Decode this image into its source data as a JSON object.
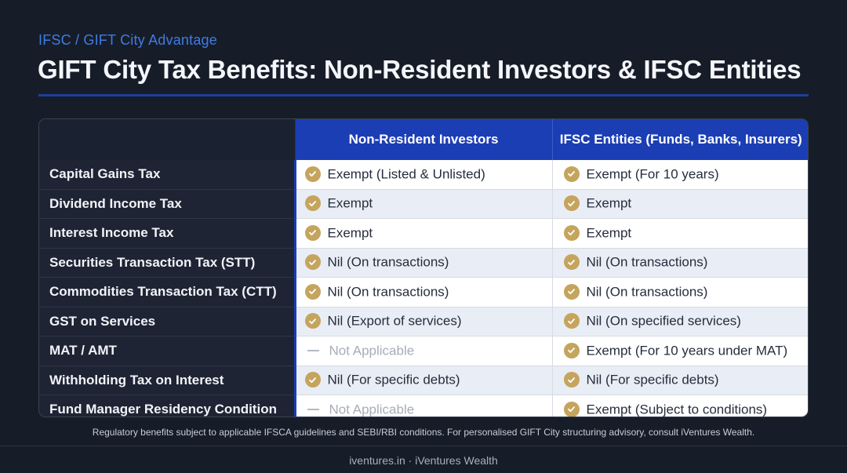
{
  "eyebrow": "IFSC / GIFT City Advantage",
  "title": "GIFT City Tax Benefits: Non-Resident Investors & IFSC Entities",
  "colors": {
    "accent_blue": "#1b3eb5",
    "check_gold": "#c5a45d",
    "background": "#171d28"
  },
  "table": {
    "columns": [
      "Non-Resident Investors",
      "IFSC Entities (Funds, Banks, Insurers)"
    ],
    "rows": [
      {
        "label": "Capital Gains Tax",
        "nri": {
          "status": "check",
          "text": "Exempt (Listed & Unlisted)"
        },
        "ifsc": {
          "status": "check",
          "text": "Exempt (For 10 years)"
        }
      },
      {
        "label": "Dividend Income Tax",
        "nri": {
          "status": "check",
          "text": "Exempt"
        },
        "ifsc": {
          "status": "check",
          "text": "Exempt"
        }
      },
      {
        "label": "Interest Income Tax",
        "nri": {
          "status": "check",
          "text": "Exempt"
        },
        "ifsc": {
          "status": "check",
          "text": "Exempt"
        }
      },
      {
        "label": "Securities Transaction Tax (STT)",
        "nri": {
          "status": "check",
          "text": "Nil (On transactions)"
        },
        "ifsc": {
          "status": "check",
          "text": "Nil (On transactions)"
        }
      },
      {
        "label": "Commodities Transaction Tax (CTT)",
        "nri": {
          "status": "check",
          "text": "Nil (On transactions)"
        },
        "ifsc": {
          "status": "check",
          "text": "Nil (On transactions)"
        }
      },
      {
        "label": "GST on Services",
        "nri": {
          "status": "check",
          "text": "Nil (Export of services)"
        },
        "ifsc": {
          "status": "check",
          "text": "Nil (On specified services)"
        }
      },
      {
        "label": "MAT / AMT",
        "nri": {
          "status": "na",
          "text": "Not Applicable"
        },
        "ifsc": {
          "status": "check",
          "text": "Exempt (For 10 years under MAT)"
        }
      },
      {
        "label": "Withholding Tax on Interest",
        "nri": {
          "status": "check",
          "text": "Nil (For specific debts)"
        },
        "ifsc": {
          "status": "check",
          "text": "Nil (For specific debts)"
        }
      },
      {
        "label": "Fund Manager Residency Condition",
        "nri": {
          "status": "na",
          "text": "Not Applicable"
        },
        "ifsc": {
          "status": "check",
          "text": "Exempt (Subject to conditions)"
        }
      }
    ]
  },
  "icons": {
    "check": "check-circle-icon",
    "na": "dash-icon"
  },
  "disclaimer": "Regulatory benefits subject to applicable IFSCA guidelines and SEBI/RBI conditions. For personalised GIFT City structuring advisory, consult iVentures Wealth.",
  "footer": "iventures.in · iVentures Wealth"
}
